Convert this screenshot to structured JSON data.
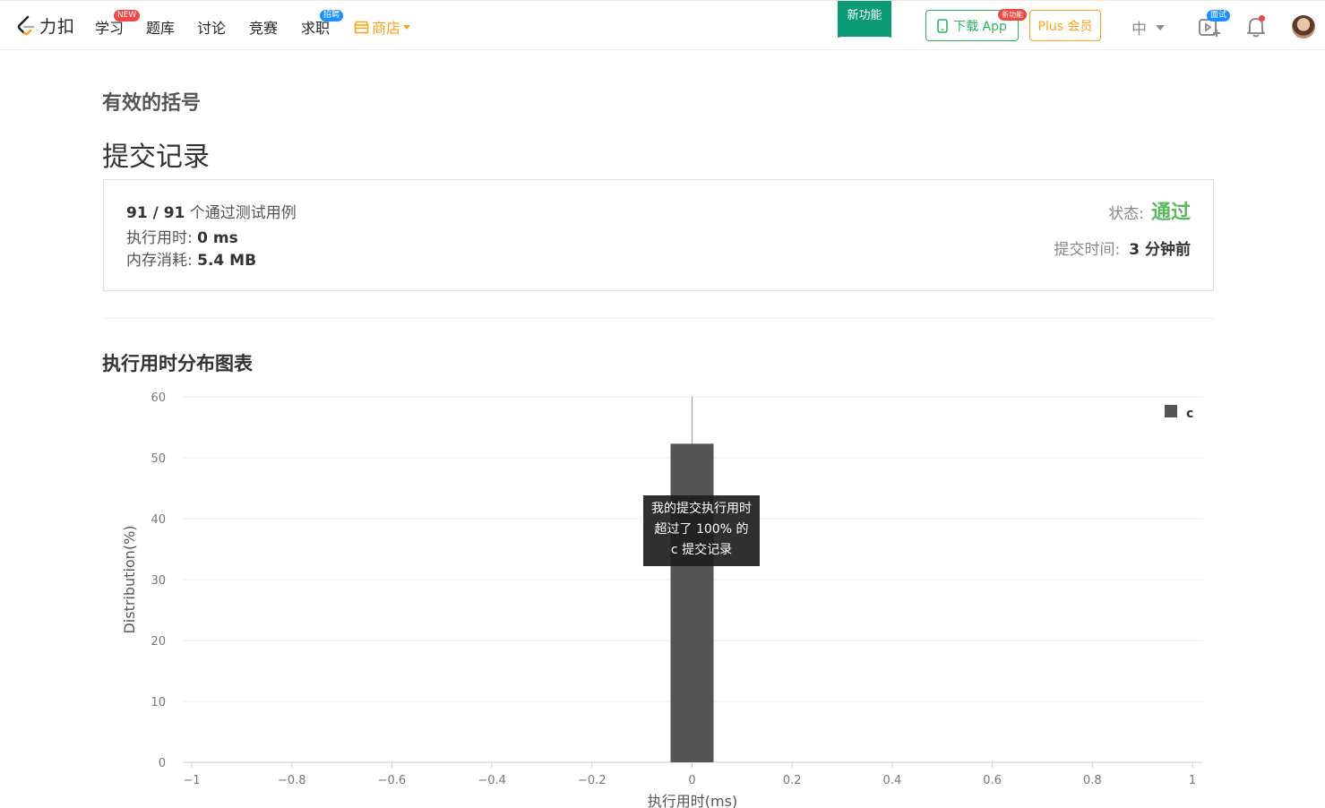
{
  "nav": {
    "logo_text": "力扣",
    "items": [
      {
        "label": "学习",
        "badge": "NEW"
      },
      {
        "label": "题库"
      },
      {
        "label": "讨论"
      },
      {
        "label": "竞赛"
      },
      {
        "label": "求职",
        "badge": "招聘"
      }
    ],
    "store_label": "商店",
    "new_feature": "新功能",
    "download_app": "下载 App",
    "download_badge": "新功能",
    "plus": "Plus 会员",
    "lang": "中",
    "interview_badge": "面试"
  },
  "problem": {
    "title": "有效的括号"
  },
  "page_title": "提交记录",
  "result": {
    "cases_passed": "91 / 91",
    "cases_suffix": "个通过测试用例",
    "runtime_label": "执行用时:",
    "runtime_value": "0 ms",
    "memory_label": "内存消耗:",
    "memory_value": "5.4 MB",
    "status_label": "状态:",
    "status_value": "通过",
    "submit_time_label": "提交时间:",
    "submit_time_value": "3 分钟前"
  },
  "chart_heading": "执行用时分布图表",
  "tooltip": {
    "line1": "我的提交执行用时",
    "line2": "超过了 100% 的",
    "line3": "c 提交记录"
  },
  "colors": {
    "accent_green": "#2db55d",
    "brand_orange": "#ffa116",
    "bar": "#555555",
    "pass": "#5cb85c"
  },
  "chart_data": {
    "type": "bar",
    "x": [
      0
    ],
    "values": [
      52.3
    ],
    "series": [
      {
        "name": "c",
        "values": [
          52.3
        ]
      }
    ],
    "xlabel": "执行用时(ms)",
    "ylabel": "Distribution(%)",
    "xlim": [
      -1,
      1
    ],
    "ylim": [
      0,
      60
    ],
    "xticks": [
      "-1",
      "-0.8",
      "-0.6",
      "-0.4",
      "-0.2",
      "0",
      "0.2",
      "0.4",
      "0.6",
      "0.8",
      "1"
    ],
    "yticks": [
      "0",
      "10",
      "20",
      "30",
      "40",
      "50",
      "60"
    ],
    "marker_x": 0,
    "grid": true,
    "legend": "top-right"
  }
}
